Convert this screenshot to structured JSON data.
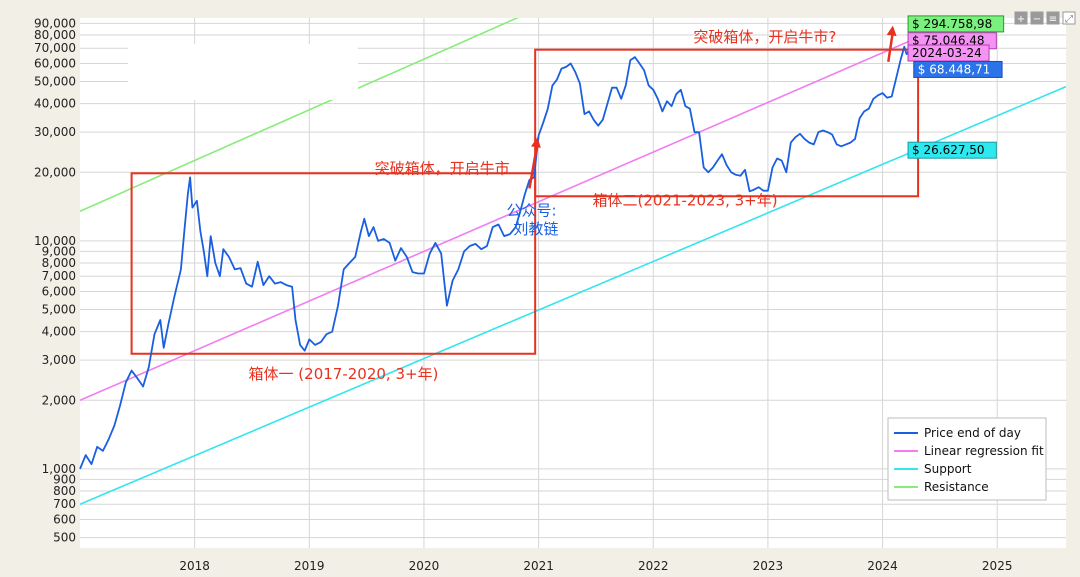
{
  "chart_data": {
    "type": "line",
    "y_scale": "log",
    "ylim": [
      450,
      95000
    ],
    "x_range_years": [
      2017.0,
      2025.6
    ],
    "grid": true,
    "legend_position": "bottom-right",
    "y_ticks": [
      {
        "value": 500,
        "label": "500"
      },
      {
        "value": 600,
        "label": "600"
      },
      {
        "value": 700,
        "label": "700"
      },
      {
        "value": 800,
        "label": "800"
      },
      {
        "value": 900,
        "label": "900"
      },
      {
        "value": 1000,
        "label": "1,000"
      },
      {
        "value": 2000,
        "label": "2,000"
      },
      {
        "value": 3000,
        "label": "3,000"
      },
      {
        "value": 4000,
        "label": "4,000"
      },
      {
        "value": 5000,
        "label": "5,000"
      },
      {
        "value": 6000,
        "label": "6,000"
      },
      {
        "value": 7000,
        "label": "7,000"
      },
      {
        "value": 8000,
        "label": "8,000"
      },
      {
        "value": 9000,
        "label": "9,000"
      },
      {
        "value": 10000,
        "label": "10,000"
      },
      {
        "value": 20000,
        "label": "20,000"
      },
      {
        "value": 30000,
        "label": "30,000"
      },
      {
        "value": 40000,
        "label": "40,000"
      },
      {
        "value": 50000,
        "label": "50,000"
      },
      {
        "value": 60000,
        "label": "60,000"
      },
      {
        "value": 70000,
        "label": "70,000"
      },
      {
        "value": 80000,
        "label": "80,000"
      },
      {
        "value": 90000,
        "label": "90,000"
      }
    ],
    "x_ticks": [
      {
        "value": 2018,
        "label": "2018"
      },
      {
        "value": 2019,
        "label": "2019"
      },
      {
        "value": 2020,
        "label": "2020"
      },
      {
        "value": 2021,
        "label": "2021"
      },
      {
        "value": 2022,
        "label": "2022"
      },
      {
        "value": 2023,
        "label": "2023"
      },
      {
        "value": 2024,
        "label": "2024"
      },
      {
        "value": 2025,
        "label": "2025"
      }
    ],
    "series": [
      {
        "name": "Price end of day",
        "color": "#1a5fe0",
        "points": [
          [
            2017.0,
            1000
          ],
          [
            2017.05,
            1150
          ],
          [
            2017.1,
            1050
          ],
          [
            2017.15,
            1250
          ],
          [
            2017.2,
            1200
          ],
          [
            2017.25,
            1350
          ],
          [
            2017.3,
            1550
          ],
          [
            2017.35,
            1900
          ],
          [
            2017.4,
            2400
          ],
          [
            2017.45,
            2700
          ],
          [
            2017.5,
            2500
          ],
          [
            2017.55,
            2300
          ],
          [
            2017.6,
            2800
          ],
          [
            2017.65,
            3900
          ],
          [
            2017.7,
            4500
          ],
          [
            2017.73,
            3400
          ],
          [
            2017.77,
            4300
          ],
          [
            2017.82,
            5600
          ],
          [
            2017.85,
            6500
          ],
          [
            2017.88,
            7500
          ],
          [
            2017.91,
            11000
          ],
          [
            2017.94,
            16000
          ],
          [
            2017.96,
            19000
          ],
          [
            2017.98,
            14000
          ],
          [
            2018.02,
            15000
          ],
          [
            2018.05,
            11000
          ],
          [
            2018.08,
            9000
          ],
          [
            2018.11,
            7000
          ],
          [
            2018.14,
            10500
          ],
          [
            2018.18,
            8000
          ],
          [
            2018.22,
            7000
          ],
          [
            2018.25,
            9200
          ],
          [
            2018.3,
            8500
          ],
          [
            2018.35,
            7500
          ],
          [
            2018.4,
            7600
          ],
          [
            2018.45,
            6500
          ],
          [
            2018.5,
            6300
          ],
          [
            2018.55,
            8100
          ],
          [
            2018.6,
            6400
          ],
          [
            2018.65,
            7000
          ],
          [
            2018.7,
            6500
          ],
          [
            2018.75,
            6600
          ],
          [
            2018.8,
            6400
          ],
          [
            2018.85,
            6300
          ],
          [
            2018.88,
            4500
          ],
          [
            2018.92,
            3500
          ],
          [
            2018.96,
            3300
          ],
          [
            2019.0,
            3700
          ],
          [
            2019.05,
            3500
          ],
          [
            2019.1,
            3600
          ],
          [
            2019.15,
            3900
          ],
          [
            2019.2,
            4000
          ],
          [
            2019.25,
            5200
          ],
          [
            2019.3,
            7500
          ],
          [
            2019.35,
            8000
          ],
          [
            2019.4,
            8500
          ],
          [
            2019.45,
            11000
          ],
          [
            2019.48,
            12500
          ],
          [
            2019.52,
            10500
          ],
          [
            2019.56,
            11500
          ],
          [
            2019.6,
            10000
          ],
          [
            2019.65,
            10200
          ],
          [
            2019.7,
            9800
          ],
          [
            2019.75,
            8200
          ],
          [
            2019.8,
            9300
          ],
          [
            2019.85,
            8500
          ],
          [
            2019.9,
            7300
          ],
          [
            2019.95,
            7200
          ],
          [
            2020.0,
            7200
          ],
          [
            2020.05,
            8800
          ],
          [
            2020.1,
            9800
          ],
          [
            2020.15,
            8800
          ],
          [
            2020.2,
            5200
          ],
          [
            2020.25,
            6700
          ],
          [
            2020.3,
            7500
          ],
          [
            2020.35,
            9000
          ],
          [
            2020.4,
            9500
          ],
          [
            2020.45,
            9700
          ],
          [
            2020.5,
            9200
          ],
          [
            2020.55,
            9500
          ],
          [
            2020.6,
            11500
          ],
          [
            2020.65,
            11800
          ],
          [
            2020.7,
            10500
          ],
          [
            2020.75,
            10700
          ],
          [
            2020.8,
            11500
          ],
          [
            2020.84,
            13500
          ],
          [
            2020.88,
            16000
          ],
          [
            2020.92,
            18500
          ],
          [
            2020.96,
            19000
          ],
          [
            2021.0,
            29000
          ],
          [
            2021.04,
            33000
          ],
          [
            2021.08,
            38000
          ],
          [
            2021.12,
            48000
          ],
          [
            2021.16,
            51000
          ],
          [
            2021.2,
            57000
          ],
          [
            2021.24,
            58000
          ],
          [
            2021.28,
            60000
          ],
          [
            2021.32,
            55000
          ],
          [
            2021.36,
            49000
          ],
          [
            2021.4,
            36000
          ],
          [
            2021.44,
            37000
          ],
          [
            2021.48,
            34000
          ],
          [
            2021.52,
            32000
          ],
          [
            2021.56,
            34000
          ],
          [
            2021.6,
            40000
          ],
          [
            2021.64,
            47000
          ],
          [
            2021.68,
            47000
          ],
          [
            2021.72,
            42000
          ],
          [
            2021.76,
            48000
          ],
          [
            2021.8,
            62000
          ],
          [
            2021.84,
            64000
          ],
          [
            2021.88,
            60000
          ],
          [
            2021.92,
            56000
          ],
          [
            2021.96,
            48000
          ],
          [
            2022.0,
            46000
          ],
          [
            2022.04,
            42000
          ],
          [
            2022.08,
            37000
          ],
          [
            2022.12,
            41000
          ],
          [
            2022.16,
            39000
          ],
          [
            2022.2,
            44000
          ],
          [
            2022.24,
            46000
          ],
          [
            2022.28,
            39000
          ],
          [
            2022.32,
            38000
          ],
          [
            2022.36,
            30000
          ],
          [
            2022.4,
            30000
          ],
          [
            2022.44,
            21000
          ],
          [
            2022.48,
            20000
          ],
          [
            2022.52,
            21000
          ],
          [
            2022.56,
            22500
          ],
          [
            2022.6,
            24000
          ],
          [
            2022.64,
            21500
          ],
          [
            2022.68,
            20000
          ],
          [
            2022.72,
            19500
          ],
          [
            2022.76,
            19300
          ],
          [
            2022.8,
            20500
          ],
          [
            2022.84,
            16500
          ],
          [
            2022.88,
            16800
          ],
          [
            2022.92,
            17200
          ],
          [
            2022.96,
            16600
          ],
          [
            2023.0,
            16600
          ],
          [
            2023.04,
            21000
          ],
          [
            2023.08,
            23000
          ],
          [
            2023.12,
            22500
          ],
          [
            2023.16,
            20000
          ],
          [
            2023.2,
            27000
          ],
          [
            2023.24,
            28500
          ],
          [
            2023.28,
            29500
          ],
          [
            2023.32,
            28000
          ],
          [
            2023.36,
            27000
          ],
          [
            2023.4,
            26500
          ],
          [
            2023.44,
            30000
          ],
          [
            2023.48,
            30500
          ],
          [
            2023.52,
            30000
          ],
          [
            2023.56,
            29300
          ],
          [
            2023.6,
            26500
          ],
          [
            2023.64,
            26000
          ],
          [
            2023.68,
            26500
          ],
          [
            2023.72,
            27000
          ],
          [
            2023.76,
            28000
          ],
          [
            2023.8,
            34500
          ],
          [
            2023.84,
            37000
          ],
          [
            2023.88,
            38000
          ],
          [
            2023.92,
            42000
          ],
          [
            2023.96,
            43500
          ],
          [
            2024.0,
            44500
          ],
          [
            2024.04,
            42500
          ],
          [
            2024.08,
            43000
          ],
          [
            2024.12,
            52000
          ],
          [
            2024.16,
            63000
          ],
          [
            2024.19,
            71000
          ],
          [
            2024.21,
            66000
          ],
          [
            2024.23,
            68448
          ]
        ]
      },
      {
        "name": "Linear regression fit",
        "color": "#f07ef0",
        "style": "line",
        "start": [
          2017.0,
          2000
        ],
        "end": [
          2024.23,
          75046.48
        ]
      },
      {
        "name": "Support",
        "color": "#33e5ee",
        "style": "line",
        "start": [
          2017.0,
          700
        ],
        "end": [
          2025.6,
          47500
        ]
      },
      {
        "name": "Resistance",
        "color": "#88ec7a",
        "style": "line",
        "start": [
          2017.0,
          13500
        ],
        "end": [
          2020.8,
          94500
        ]
      }
    ],
    "boxes": [
      {
        "x0": 2017.45,
        "x1": 2020.97,
        "y0": 3200,
        "y1": 19800,
        "color": "#e8311f"
      },
      {
        "x0": 2020.97,
        "x1": 2024.31,
        "y0": 15700,
        "y1": 69000,
        "color": "#e8311f"
      }
    ],
    "arrows": [
      {
        "from": [
          2020.92,
          17000
        ],
        "to": [
          2020.99,
          28500
        ],
        "color": "#e8311f"
      },
      {
        "from": [
          2024.05,
          61000
        ],
        "to": [
          2024.09,
          88000
        ],
        "color": "#e8311f"
      }
    ],
    "annotations": [
      {
        "text": "突破箱体，开启牛市",
        "x": 2019.57,
        "y": 19800,
        "color": "#e8311f"
      },
      {
        "text": "箱体二(2021-2023, 3+年)",
        "x": 2021.47,
        "y": 14300,
        "color": "#e8311f"
      },
      {
        "text": "箱体一 (2017-2020, 3+年)",
        "x": 2018.47,
        "y": 2480,
        "color": "#e8311f"
      },
      {
        "text": "突破箱体，开启牛市?",
        "x": 2022.35,
        "y": 74500,
        "color": "#e8311f"
      },
      {
        "text": "公众号:",
        "x": 2020.72,
        "y": 12900,
        "color": "#1a5fe0"
      },
      {
        "text": "刘教链",
        "x": 2020.78,
        "y": 10700,
        "color": "#1a5fe0"
      }
    ],
    "price_tags": [
      {
        "text": "$ 294.758,98",
        "x": 2024.17,
        "y": 89500,
        "bg": "#7af07e",
        "fg": "#000000",
        "border": "#2a9a2a"
      },
      {
        "text": "$ 75.046,48",
        "x": 2024.17,
        "y": 75500,
        "bg": "#f593f5",
        "fg": "#000000",
        "border": "#b040b0"
      },
      {
        "text": "2024-03-24",
        "x": 2024.17,
        "y": 66700,
        "bg": "#f593f5",
        "fg": "#000000",
        "border": "#b040b0"
      },
      {
        "text": "$ 68.448,71",
        "x": 2024.22,
        "y": 56500,
        "bg": "#2a73e8",
        "fg": "#ffffff",
        "border": "#1a4fb0"
      },
      {
        "text": "$ 26.627,50",
        "x": 2024.17,
        "y": 25000,
        "bg": "#2ee8ef",
        "fg": "#000000",
        "border": "#1a9aa0"
      }
    ]
  },
  "legend": {
    "items": [
      {
        "label": "Price end of day",
        "color": "#1a5fe0"
      },
      {
        "label": "Linear regression fit",
        "color": "#f07ef0"
      },
      {
        "label": "Support",
        "color": "#33e5ee"
      },
      {
        "label": "Resistance",
        "color": "#88ec7a"
      }
    ]
  },
  "toolbar": {
    "buttons": [
      {
        "name": "zoom-in-button",
        "symbol": "+"
      },
      {
        "name": "zoom-out-button",
        "symbol": "−"
      },
      {
        "name": "settings-button",
        "symbol": "≡"
      },
      {
        "name": "fullscreen-button",
        "symbol": "⤢"
      }
    ]
  }
}
